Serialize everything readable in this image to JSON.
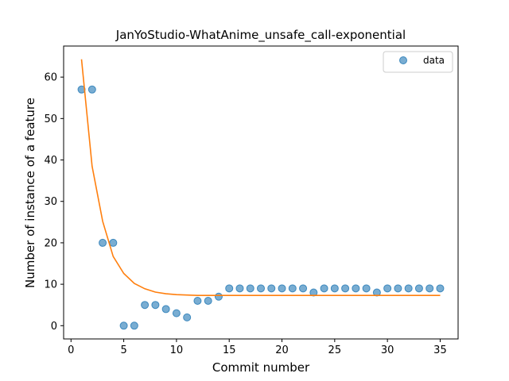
{
  "chart_data": {
    "type": "scatter",
    "title": "JanYoStudio-WhatAnime_unsafe_call-exponential",
    "xlabel": "Commit number",
    "ylabel": "Number of instance of a feature",
    "xlim": [
      -0.7,
      36.7
    ],
    "ylim": [
      -3.2,
      67.5
    ],
    "xticks": [
      0,
      5,
      10,
      15,
      20,
      25,
      30,
      35
    ],
    "yticks": [
      0,
      10,
      20,
      30,
      40,
      50,
      60
    ],
    "grid": false,
    "legend_position": "top-right",
    "series": [
      {
        "name": "data",
        "kind": "points",
        "color": "#1f77b4",
        "x": [
          1,
          2,
          3,
          4,
          5,
          6,
          7,
          8,
          9,
          10,
          11,
          12,
          13,
          14,
          15,
          16,
          17,
          18,
          19,
          20,
          21,
          22,
          23,
          24,
          25,
          26,
          27,
          28,
          29,
          30,
          31,
          32,
          33,
          34,
          35
        ],
        "y": [
          57,
          57,
          20,
          20,
          0,
          0,
          5,
          5,
          4,
          3,
          2,
          6,
          6,
          7,
          9,
          9,
          9,
          9,
          9,
          9,
          9,
          9,
          8,
          9,
          9,
          9,
          9,
          9,
          8,
          9,
          9,
          9,
          9,
          9,
          9
        ]
      },
      {
        "kind": "line",
        "color": "#ff7f0e",
        "x": [
          1,
          2,
          3,
          4,
          5,
          6,
          7,
          8,
          9,
          10,
          11,
          12,
          13,
          14,
          15,
          16,
          17,
          18,
          19,
          20,
          21,
          22,
          23,
          24,
          25,
          26,
          27,
          28,
          29,
          30,
          31,
          32,
          33,
          34,
          35
        ],
        "y": [
          64.3,
          38.5,
          25.2,
          16.7,
          12.6,
          10.2,
          8.9,
          8.1,
          7.7,
          7.5,
          7.4,
          7.3,
          7.3,
          7.3,
          7.3,
          7.3,
          7.3,
          7.3,
          7.3,
          7.3,
          7.3,
          7.3,
          7.3,
          7.3,
          7.3,
          7.3,
          7.3,
          7.3,
          7.3,
          7.3,
          7.3,
          7.3,
          7.3,
          7.3,
          7.3
        ]
      }
    ]
  }
}
